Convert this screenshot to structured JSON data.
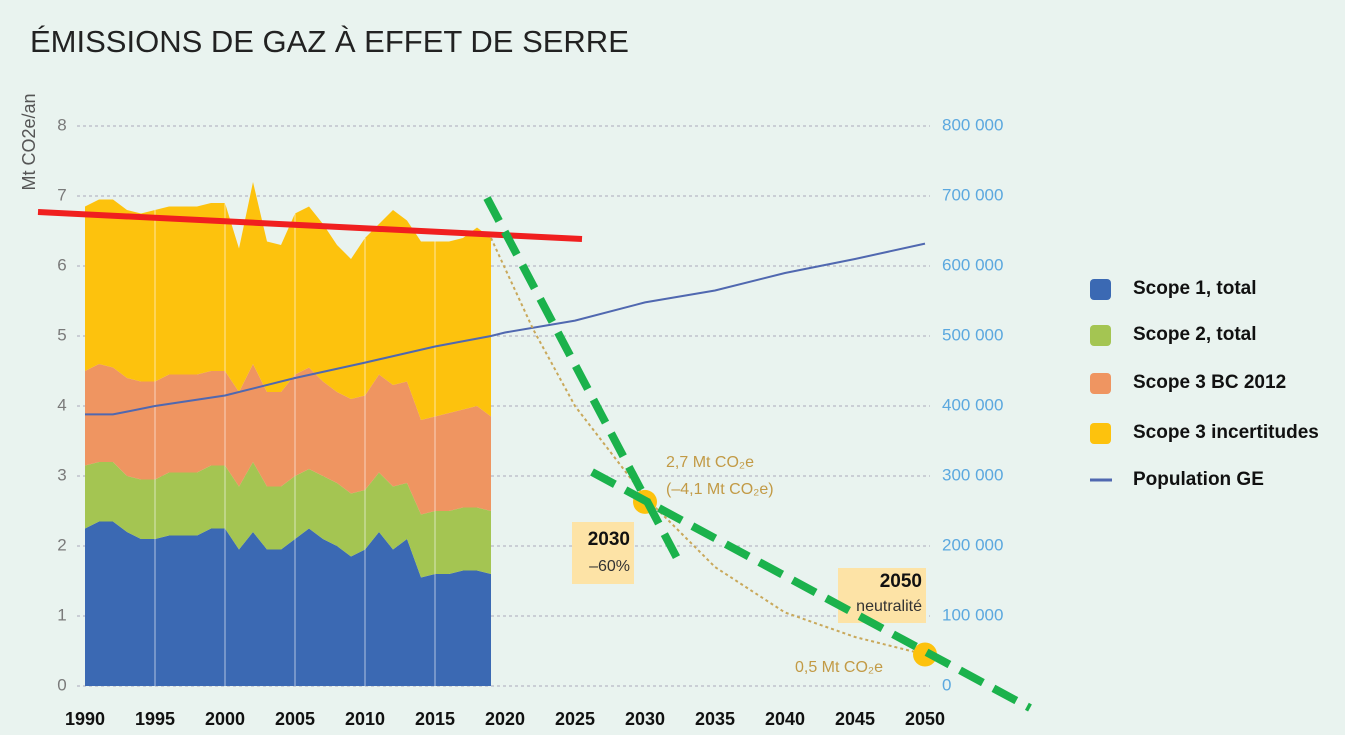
{
  "chart_data": {
    "type": "area",
    "title": "ÉMISSIONS DE GAZ À EFFET DE SERRE",
    "y_label": "Mt CO2e/an",
    "x": [
      1990,
      1991,
      1992,
      1993,
      1994,
      1995,
      1996,
      1997,
      1998,
      1999,
      2000,
      2001,
      2002,
      2003,
      2004,
      2005,
      2006,
      2007,
      2008,
      2009,
      2010,
      2011,
      2012,
      2013,
      2014,
      2015,
      2016,
      2017,
      2018,
      2019
    ],
    "series": [
      {
        "name": "Scope 1, total",
        "color": "#3b69b3",
        "values": [
          2.25,
          2.35,
          2.35,
          2.2,
          2.1,
          2.1,
          2.15,
          2.15,
          2.15,
          2.25,
          2.25,
          1.95,
          2.2,
          1.95,
          1.95,
          2.1,
          2.25,
          2.1,
          2.0,
          1.85,
          1.95,
          2.2,
          1.95,
          2.1,
          1.55,
          1.6,
          1.6,
          1.65,
          1.65,
          1.6
        ]
      },
      {
        "name": "Scope 2, total",
        "color": "#a4c552",
        "values": [
          0.9,
          0.85,
          0.85,
          0.8,
          0.85,
          0.85,
          0.9,
          0.9,
          0.9,
          0.9,
          0.9,
          0.9,
          1.0,
          0.9,
          0.9,
          0.9,
          0.85,
          0.9,
          0.9,
          0.9,
          0.85,
          0.85,
          0.9,
          0.8,
          0.9,
          0.9,
          0.9,
          0.9,
          0.9,
          0.9
        ]
      },
      {
        "name": "Scope 3 BC 2012",
        "color": "#ef9561",
        "values": [
          1.35,
          1.4,
          1.35,
          1.4,
          1.4,
          1.4,
          1.4,
          1.4,
          1.4,
          1.35,
          1.35,
          1.35,
          1.4,
          1.35,
          1.35,
          1.45,
          1.45,
          1.35,
          1.3,
          1.35,
          1.35,
          1.4,
          1.45,
          1.45,
          1.35,
          1.35,
          1.4,
          1.4,
          1.45,
          1.35
        ]
      },
      {
        "name": "Scope 3 incertitudes",
        "color": "#fdc20d",
        "values": [
          2.35,
          2.35,
          2.4,
          2.4,
          2.4,
          2.45,
          2.4,
          2.4,
          2.4,
          2.4,
          2.4,
          2.05,
          2.6,
          2.15,
          2.1,
          2.3,
          2.3,
          2.25,
          2.1,
          2.0,
          2.25,
          2.15,
          2.5,
          2.3,
          2.55,
          2.5,
          2.45,
          2.45,
          2.55,
          2.55
        ]
      },
      {
        "name": "Population GE",
        "type": "line",
        "axis": "y2",
        "color": "#5068b0",
        "x": [
          1990,
          1992,
          1993,
          1995,
          2000,
          2005,
          2010,
          2015,
          2019,
          2020,
          2025,
          2030,
          2035,
          2040,
          2045,
          2050
        ],
        "values": [
          388000,
          388000,
          392000,
          400000,
          415000,
          440000,
          462000,
          485000,
          500000,
          505000,
          522000,
          548000,
          565000,
          590000,
          610000,
          632000
        ]
      }
    ],
    "trajectory": {
      "color": "#c9a85a",
      "x": [
        2019,
        2022,
        2025,
        2030,
        2035,
        2040,
        2045,
        2050
      ],
      "values": [
        6.4,
        5.1,
        4.0,
        2.7,
        1.7,
        1.05,
        0.7,
        0.45
      ]
    },
    "targets": {
      "x": [
        2030,
        2050
      ],
      "values": [
        2.63,
        0.45
      ],
      "color": "#fdc20d"
    },
    "annotations": [
      "2,7 Mt CO₂e",
      "(–4,1 Mt CO₂e)",
      "2030",
      "–60%",
      "2050",
      "neutralité",
      "0,5 Mt CO₂e"
    ],
    "xlim": [
      1990,
      2050
    ],
    "xticks": [
      1990,
      1995,
      2000,
      2005,
      2010,
      2015,
      2020,
      2025,
      2030,
      2035,
      2040,
      2045,
      2050
    ],
    "ylim": [
      0,
      8
    ],
    "yticks": [
      0,
      1,
      2,
      3,
      4,
      5,
      6,
      7,
      8
    ],
    "y2lim": [
      0,
      800000
    ],
    "y2ticks": [
      0,
      {
        "value": 100000,
        "label": "100 000"
      },
      {
        "value": 200000,
        "label": "200 000"
      },
      {
        "value": 300000,
        "label": "300 000"
      },
      {
        "value": 400000,
        "label": "400 000"
      },
      {
        "value": 500000,
        "label": "500 000"
      },
      {
        "value": 600000,
        "label": "600 000"
      },
      {
        "value": 700000,
        "label": "700 000"
      },
      {
        "value": 800000,
        "label": "800 000"
      }
    ],
    "grid": true
  }
}
